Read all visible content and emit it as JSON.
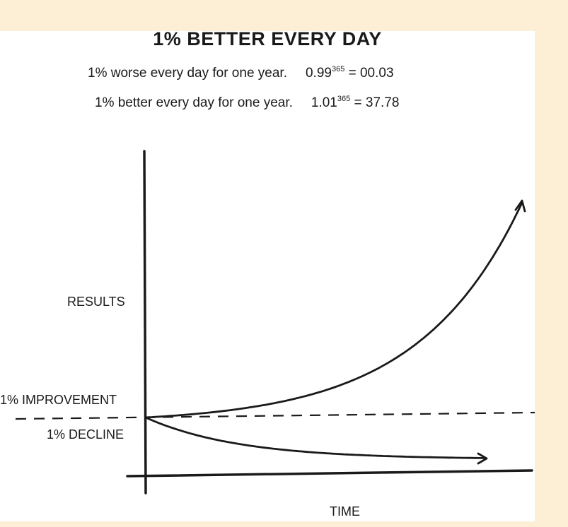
{
  "chart_data": {
    "type": "line",
    "title": "1% BETTER EVERY DAY",
    "equations": [
      {
        "text": "1% worse every day for one year.",
        "base": "0.99",
        "exponent": "365",
        "result": "= 00.03"
      },
      {
        "text": "1% better every day for one year.",
        "base": "1.01",
        "exponent": "365",
        "result": "= 37.78"
      }
    ],
    "xlabel": "TIME",
    "ylabel": "RESULTS",
    "annotations": [
      "1% IMPROVEMENT",
      "1% DECLINE"
    ],
    "series": [
      {
        "name": "1% IMPROVEMENT",
        "rate": 1.01,
        "days": 365,
        "end_value": 37.78
      },
      {
        "name": "1% DECLINE",
        "rate": 0.99,
        "days": 365,
        "end_value": 0.03
      }
    ],
    "baseline": 1,
    "grid": false,
    "colors": {
      "background": "#fcefd6",
      "panel": "#ffffff",
      "ink": "#1a1a1a"
    }
  }
}
